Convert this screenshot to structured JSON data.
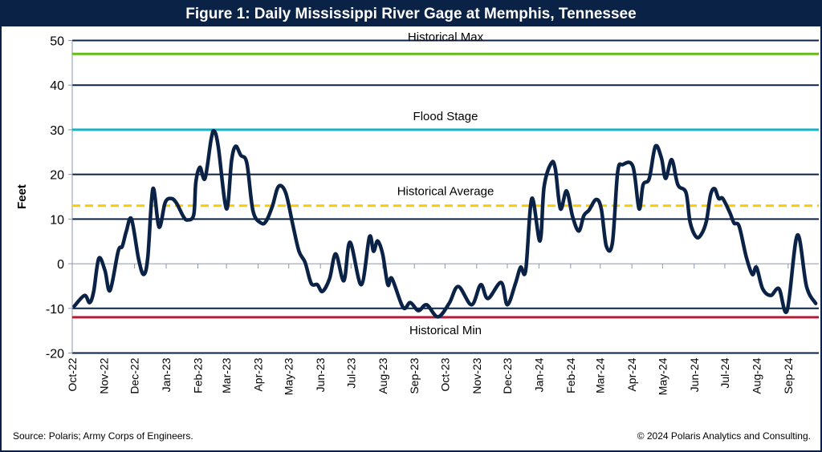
{
  "chart_data": {
    "type": "line",
    "title": "Figure 1: Daily Mississippi River Gage at Memphis, Tennessee",
    "ylabel": "Feet",
    "xlabel": "",
    "ylim": [
      -20,
      50
    ],
    "yticks": [
      -20,
      -10,
      0,
      10,
      20,
      30,
      40,
      50
    ],
    "xlim": [
      "2022-10-01",
      "2024-10-01"
    ],
    "xtick_labels": [
      "Oct-22",
      "Nov-22",
      "Dec-22",
      "Jan-23",
      "Feb-23",
      "Mar-23",
      "Apr-23",
      "May-23",
      "Jun-23",
      "Jul-23",
      "Aug-23",
      "Sep-23",
      "Oct-23",
      "Nov-23",
      "Dec-23",
      "Jan-24",
      "Feb-24",
      "Mar-24",
      "Apr-24",
      "May-24",
      "Jun-24",
      "Jul-24",
      "Aug-24",
      "Sep-24"
    ],
    "grid": true,
    "reference_lines": [
      {
        "label": "Historical Max",
        "value": 47,
        "color": "#66bb1a",
        "style": "solid"
      },
      {
        "label": "Flood Stage",
        "value": 30,
        "color": "#17b1c2",
        "style": "solid"
      },
      {
        "label": "Historical Average",
        "value": 13,
        "color": "#ffcc00",
        "style": "dashed"
      },
      {
        "label": "Historical Min",
        "value": -12,
        "color": "#b01f3a",
        "style": "solid"
      }
    ],
    "series_color": "#0b2247",
    "series": [
      {
        "points": [
          [
            "2022-10-03",
            -9.5
          ],
          [
            "2022-10-13",
            -7.1
          ],
          [
            "2022-10-18",
            -8.7
          ],
          [
            "2022-10-22",
            -6.2
          ],
          [
            "2022-10-27",
            1.2
          ],
          [
            "2022-11-02",
            -1.5
          ],
          [
            "2022-11-07",
            -6
          ],
          [
            "2022-11-15",
            2.8
          ],
          [
            "2022-11-19",
            3.9
          ],
          [
            "2022-11-23",
            7.3
          ],
          [
            "2022-11-28",
            10
          ],
          [
            "2022-12-05",
            1
          ],
          [
            "2022-12-10",
            -2.4
          ],
          [
            "2022-12-14",
            1.5
          ],
          [
            "2022-12-19",
            16.8
          ],
          [
            "2022-12-25",
            8.2
          ],
          [
            "2022-12-31",
            13.7
          ],
          [
            "2023-01-06",
            14.6
          ],
          [
            "2023-01-11",
            13.6
          ],
          [
            "2023-01-18",
            10.5
          ],
          [
            "2023-01-22",
            9.8
          ],
          [
            "2023-01-28",
            11
          ],
          [
            "2023-01-30",
            18.2
          ],
          [
            "2023-02-03",
            21.6
          ],
          [
            "2023-02-08",
            19.1
          ],
          [
            "2023-02-14",
            27.9
          ],
          [
            "2023-02-17",
            29.7
          ],
          [
            "2023-02-21",
            26.2
          ],
          [
            "2023-03-01",
            12.3
          ],
          [
            "2023-03-06",
            23.1
          ],
          [
            "2023-03-10",
            26.3
          ],
          [
            "2023-03-15",
            24.3
          ],
          [
            "2023-03-21",
            22.5
          ],
          [
            "2023-03-27",
            11.8
          ],
          [
            "2023-04-04",
            9.1
          ],
          [
            "2023-04-09",
            9.6
          ],
          [
            "2023-04-15",
            12.9
          ],
          [
            "2023-04-21",
            17.3
          ],
          [
            "2023-04-28",
            15.9
          ],
          [
            "2023-05-05",
            8.7
          ],
          [
            "2023-05-11",
            2.8
          ],
          [
            "2023-05-17",
            0.3
          ],
          [
            "2023-05-23",
            -4.4
          ],
          [
            "2023-05-29",
            -4.7
          ],
          [
            "2023-06-03",
            -6.2
          ],
          [
            "2023-06-10",
            -3.3
          ],
          [
            "2023-06-16",
            2.2
          ],
          [
            "2023-06-24",
            -3.8
          ],
          [
            "2023-06-30",
            4.8
          ],
          [
            "2023-07-11",
            -4.7
          ],
          [
            "2023-07-19",
            6
          ],
          [
            "2023-07-23",
            2.8
          ],
          [
            "2023-07-27",
            5.1
          ],
          [
            "2023-08-01",
            2.1
          ],
          [
            "2023-08-06",
            -4.7
          ],
          [
            "2023-08-10",
            -3.3
          ],
          [
            "2023-08-21",
            -9.8
          ],
          [
            "2023-08-28",
            -8.7
          ],
          [
            "2023-09-05",
            -10.5
          ],
          [
            "2023-09-13",
            -9.2
          ],
          [
            "2023-09-24",
            -11.9
          ],
          [
            "2023-10-05",
            -8.9
          ],
          [
            "2023-10-14",
            -5.1
          ],
          [
            "2023-10-27",
            -9.2
          ],
          [
            "2023-11-05",
            -4.7
          ],
          [
            "2023-11-12",
            -7.8
          ],
          [
            "2023-11-25",
            -4.2
          ],
          [
            "2023-12-01",
            -9.2
          ],
          [
            "2023-12-09",
            -4.4
          ],
          [
            "2023-12-14",
            -0.8
          ],
          [
            "2023-12-19",
            -1.5
          ],
          [
            "2023-12-25",
            14.6
          ],
          [
            "2024-01-02",
            5.1
          ],
          [
            "2024-01-06",
            17.2
          ],
          [
            "2024-01-13",
            22.5
          ],
          [
            "2024-01-17",
            21.3
          ],
          [
            "2024-01-22",
            12.3
          ],
          [
            "2024-01-28",
            16.3
          ],
          [
            "2024-02-03",
            10.5
          ],
          [
            "2024-02-09",
            7.3
          ],
          [
            "2024-02-14",
            10.8
          ],
          [
            "2024-02-19",
            12
          ],
          [
            "2024-02-26",
            14.4
          ],
          [
            "2024-03-02",
            12.3
          ],
          [
            "2024-03-07",
            3.9
          ],
          [
            "2024-03-13",
            4.8
          ],
          [
            "2024-03-18",
            20.4
          ],
          [
            "2024-03-23",
            22.2
          ],
          [
            "2024-04-02",
            21.8
          ],
          [
            "2024-04-08",
            12.3
          ],
          [
            "2024-04-12",
            17.7
          ],
          [
            "2024-04-18",
            19.1
          ],
          [
            "2024-04-24",
            26.3
          ],
          [
            "2024-04-30",
            23.6
          ],
          [
            "2024-05-04",
            19.1
          ],
          [
            "2024-05-10",
            23.3
          ],
          [
            "2024-05-16",
            17.7
          ],
          [
            "2024-05-24",
            15.9
          ],
          [
            "2024-05-28",
            9.3
          ],
          [
            "2024-06-03",
            6
          ],
          [
            "2024-06-08",
            6.6
          ],
          [
            "2024-06-13",
            9.6
          ],
          [
            "2024-06-17",
            15.4
          ],
          [
            "2024-06-21",
            16.8
          ],
          [
            "2024-06-25",
            14.6
          ],
          [
            "2024-06-29",
            14.6
          ],
          [
            "2024-07-06",
            11.4
          ],
          [
            "2024-07-10",
            9.1
          ],
          [
            "2024-07-15",
            8.4
          ],
          [
            "2024-07-22",
            1.5
          ],
          [
            "2024-07-28",
            -2.4
          ],
          [
            "2024-08-01",
            -0.8
          ],
          [
            "2024-08-07",
            -5.6
          ],
          [
            "2024-08-15",
            -7.1
          ],
          [
            "2024-08-23",
            -5.6
          ],
          [
            "2024-08-31",
            -10.5
          ],
          [
            "2024-09-10",
            6.4
          ],
          [
            "2024-09-19",
            -5.1
          ],
          [
            "2024-09-28",
            -8.9
          ]
        ]
      }
    ]
  },
  "footer": {
    "source": "Source: Polaris; Army Corps of Engineers.",
    "copyright": "© 2024 Polaris Analytics and Consulting."
  }
}
